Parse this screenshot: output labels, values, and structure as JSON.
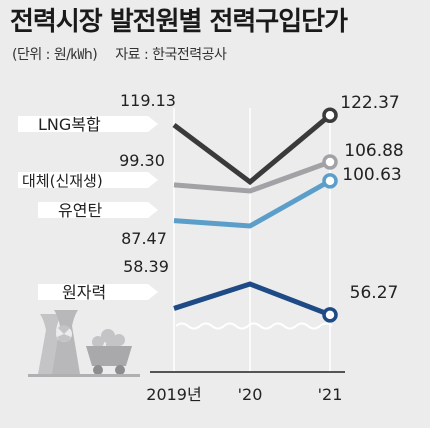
{
  "header": {
    "title": "전력시장 발전원별 전력구입단가",
    "unit": "(단위 : 원/㎾h)",
    "source": "자료 : 한국전력공사"
  },
  "chart_data": {
    "type": "line",
    "title": "전력시장 발전원별 전력구입단가",
    "categories": [
      "2019년",
      "'20",
      "'21"
    ],
    "series": [
      {
        "name": "LNG복합",
        "values": [
          119.13,
          null,
          122.37
        ],
        "color": "#3a3a3a"
      },
      {
        "name": "대체(신재생)",
        "values": [
          99.3,
          null,
          106.88
        ],
        "color": "#a2a2a6"
      },
      {
        "name": "유연탄",
        "values": [
          87.47,
          null,
          100.63
        ],
        "color": "#5b9ec9"
      },
      {
        "name": "원자력",
        "values": [
          58.39,
          null,
          56.27
        ],
        "color": "#1e4a85"
      }
    ]
  }
}
